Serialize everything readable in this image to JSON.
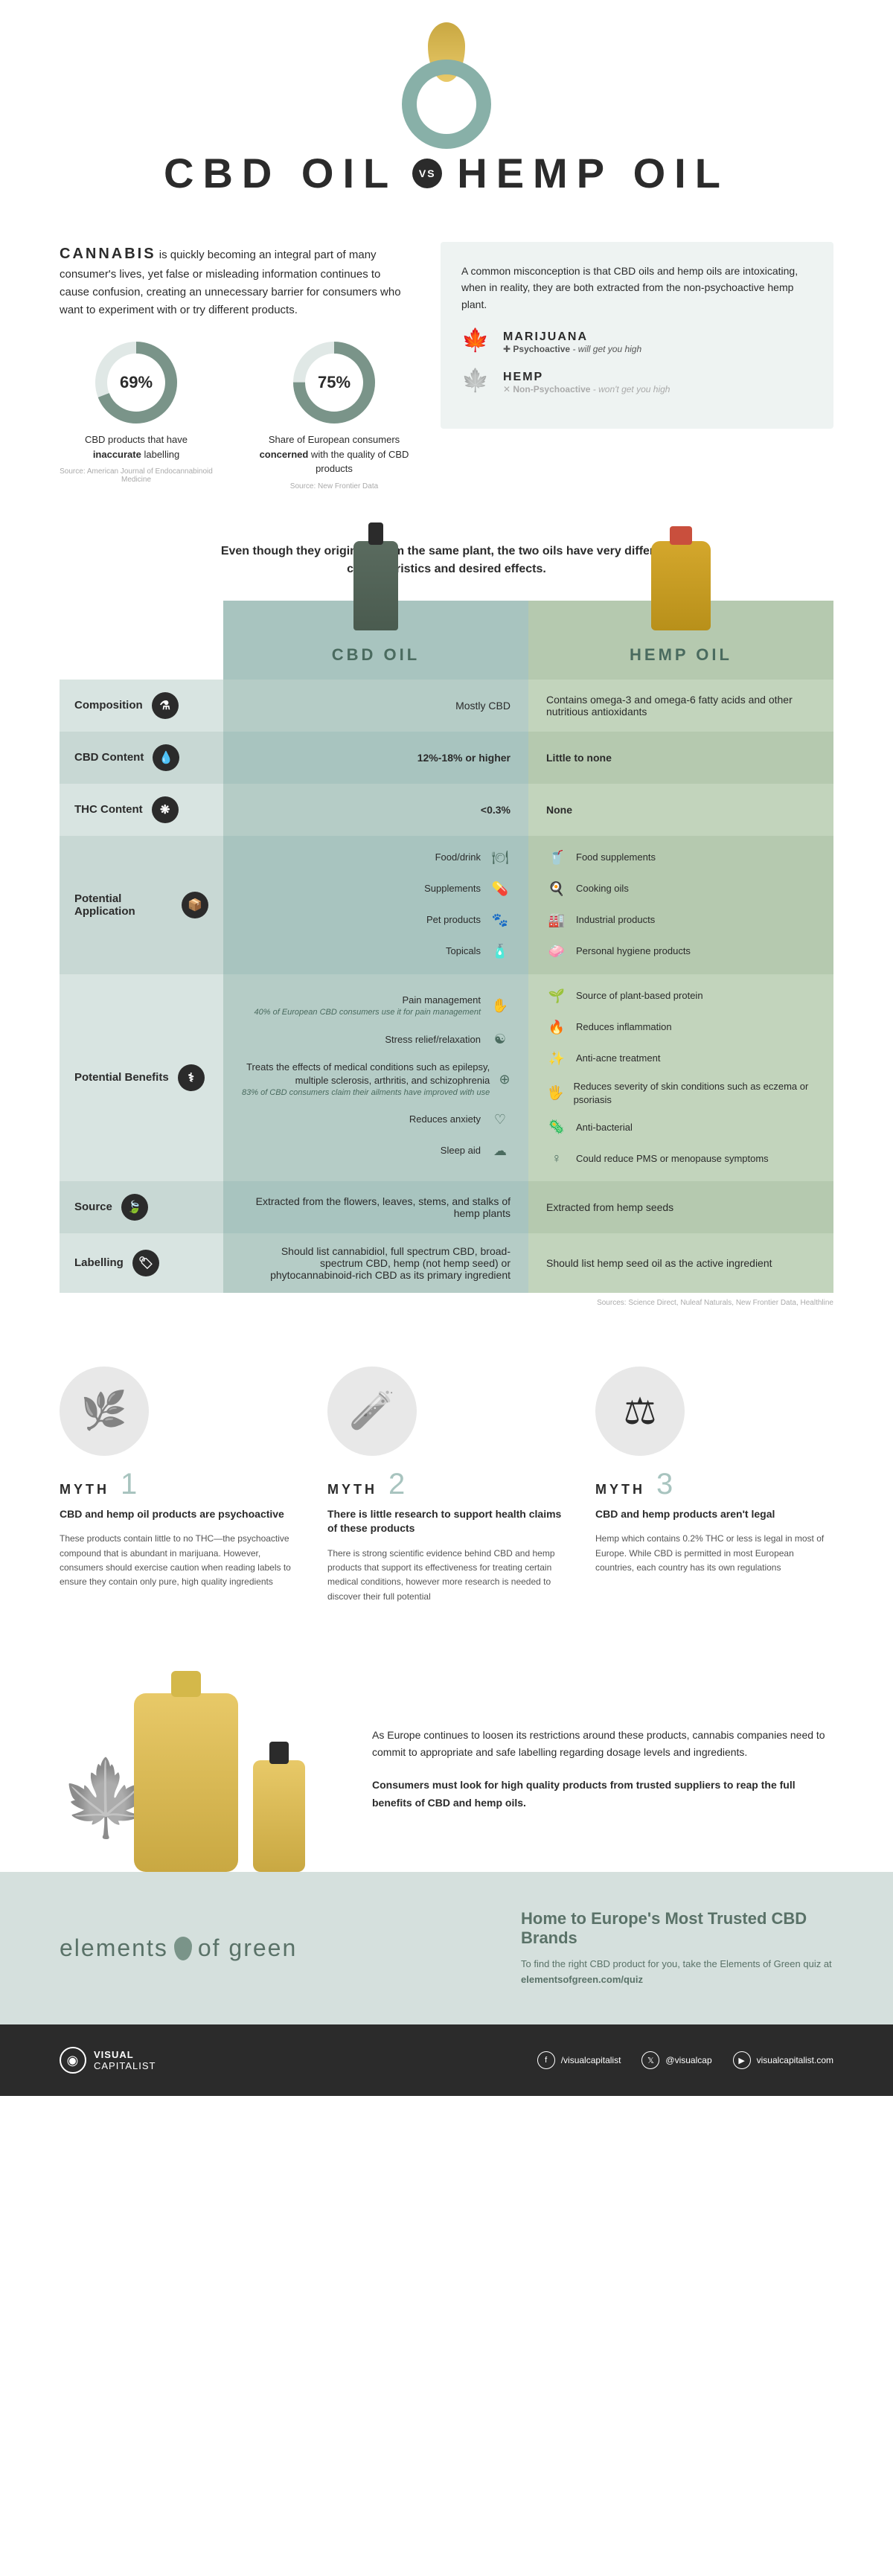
{
  "colors": {
    "cbd_col": "#a8c4bf",
    "hemp_col": "#b5c9af",
    "accent_teal": "#88b0a8",
    "dark": "#2b2b2b",
    "oil": "#d4a72c",
    "eog_band": "#d5e0dd",
    "eog_text": "#5a7268"
  },
  "hero": {
    "left": "CBD OIL",
    "vs": "VS",
    "right": "HEMP OIL"
  },
  "intro": {
    "lead_strong": "CANNABIS",
    "lead_text": " is quickly becoming an integral part of many consumer's lives, yet false or misleading information continues to cause confusion, creating an unnecessary barrier for consumers who want to experiment with or try different products.",
    "stats": [
      {
        "pct": 69,
        "pct_label": "69%",
        "text": "CBD products that have inaccurate labelling",
        "text_strong": "inaccurate",
        "source": "Source: American Journal of Endocannabinoid Medicine"
      },
      {
        "pct": 75,
        "pct_label": "75%",
        "text": "Share of European consumers concerned with the quality of CBD products",
        "text_strong": "concerned",
        "source": "Source: New Frontier Data"
      }
    ],
    "donut": {
      "size": 110,
      "stroke_width": 16,
      "bg_color": "#e0e8e6",
      "fg_color": "#7a9489"
    },
    "misconception": "A common misconception is that CBD oils and hemp oils are intoxicating, when in reality, they are both extracted from the non-psychoactive hemp plant.",
    "plants": [
      {
        "name": "MARIJUANA",
        "sub_icon": "✚",
        "sub_label": "Psychoactive",
        "sub_note": " - will get you high",
        "grey": false
      },
      {
        "name": "HEMP",
        "sub_icon": "✕",
        "sub_label": "Non-Psychoactive",
        "sub_note": " - won't get you high",
        "grey": true
      }
    ]
  },
  "compare_intro": "Even though they originate from the same plant, the two oils have very different characteristics and desired effects.",
  "columns": {
    "cbd": "CBD OIL",
    "hemp": "HEMP OIL"
  },
  "rows": [
    {
      "label": "Composition",
      "icon": "⚗",
      "cbd": "Mostly CBD",
      "hemp": "Contains omega-3 and omega-6 fatty acids and other nutritious antioxidants"
    },
    {
      "label": "CBD Content",
      "icon": "💧",
      "cbd": "12%-18% or higher",
      "hemp": "Little to none",
      "bold": true
    },
    {
      "label": "THC Content",
      "icon": "❋",
      "cbd": "<0.3%",
      "hemp": "None",
      "bold": true
    },
    {
      "label": "Potential Application",
      "icon": "📦",
      "cbd_list": [
        {
          "text": "Food/drink",
          "icon": "🍽"
        },
        {
          "text": "Supplements",
          "icon": "💊"
        },
        {
          "text": "Pet products",
          "icon": "🐾"
        },
        {
          "text": "Topicals",
          "icon": "🧴"
        }
      ],
      "hemp_list": [
        {
          "text": "Food supplements",
          "icon": "🥤"
        },
        {
          "text": "Cooking oils",
          "icon": "🍳"
        },
        {
          "text": "Industrial products",
          "icon": "🏭"
        },
        {
          "text": "Personal hygiene products",
          "icon": "🧼"
        }
      ]
    },
    {
      "label": "Potential Benefits",
      "icon": "⚕",
      "cbd_list": [
        {
          "text": "Pain management",
          "sub": "40% of European CBD consumers use it for pain management",
          "icon": "✋"
        },
        {
          "text": "Stress relief/relaxation",
          "icon": "☯"
        },
        {
          "text": "Treats the effects of medical conditions such as epilepsy, multiple sclerosis, arthritis, and schizophrenia",
          "sub": "83% of CBD consumers claim their ailments have improved with use",
          "icon": "⊕"
        },
        {
          "text": "Reduces anxiety",
          "icon": "♡"
        },
        {
          "text": "Sleep aid",
          "icon": "☁"
        }
      ],
      "hemp_list": [
        {
          "text": "Source of plant-based protein",
          "icon": "🌱"
        },
        {
          "text": "Reduces inflammation",
          "icon": "🔥"
        },
        {
          "text": "Anti-acne treatment",
          "icon": "✨"
        },
        {
          "text": "Reduces severity of skin conditions such as eczema or psoriasis",
          "icon": "🖐"
        },
        {
          "text": "Anti-bacterial",
          "icon": "🦠"
        },
        {
          "text": "Could reduce PMS or menopause symptoms",
          "icon": "♀"
        }
      ]
    },
    {
      "label": "Source",
      "icon": "🍃",
      "cbd": "Extracted from the flowers, leaves, stems, and stalks of hemp plants",
      "hemp": "Extracted from hemp seeds"
    },
    {
      "label": "Labelling",
      "icon": "🏷",
      "cbd": "Should list cannabidiol, full spectrum CBD, broad-spectrum CBD, hemp (not hemp seed) or phytocannabinoid-rich CBD as its primary ingredient",
      "hemp": "Should list hemp seed oil as the active ingredient"
    }
  ],
  "table_sources": "Sources: Science Direct, Nuleaf Naturals, New Frontier Data, Healthline",
  "myths": [
    {
      "num": "1",
      "img": "🌿",
      "title": "CBD and hemp oil products are psychoactive",
      "body": "These products contain little to no THC—the psychoactive compound that is abundant in marijuana. However, consumers should exercise caution when reading labels to ensure they contain only pure, high quality ingredients"
    },
    {
      "num": "2",
      "img": "🧪",
      "title": "There is little research to support health claims of these products",
      "body": "There is strong scientific evidence behind CBD and hemp products that support its effectiveness for treating certain medical conditions, however more research is needed to discover their full potential"
    },
    {
      "num": "3",
      "img": "⚖",
      "title": "CBD and hemp products aren't legal",
      "body": "Hemp which contains 0.2% THC or less is legal in most of Europe. While CBD is permitted in most European countries, each country has its own regulations"
    }
  ],
  "closing": {
    "p1": "As Europe continues to loosen its restrictions around these products, cannabis companies need to commit to appropriate and safe labelling regarding dosage levels and ingredients.",
    "p2": "Consumers must look for high quality products from trusted suppliers to reap the full benefits of CBD and hemp oils."
  },
  "eog": {
    "logo_left": "elements",
    "logo_right": "of green",
    "headline": "Home to Europe's Most Trusted CBD Brands",
    "sub": "To find the right CBD product for you, take the Elements of Green quiz at",
    "link": "elementsofgreen.com/quiz"
  },
  "footer": {
    "brand": "VISUAL CAPITALIST",
    "social": [
      {
        "icon": "f",
        "text": "/visualcapitalist"
      },
      {
        "icon": "𝕏",
        "text": "@visualcap"
      },
      {
        "icon": "▶",
        "text": "visualcapitalist.com"
      }
    ]
  }
}
